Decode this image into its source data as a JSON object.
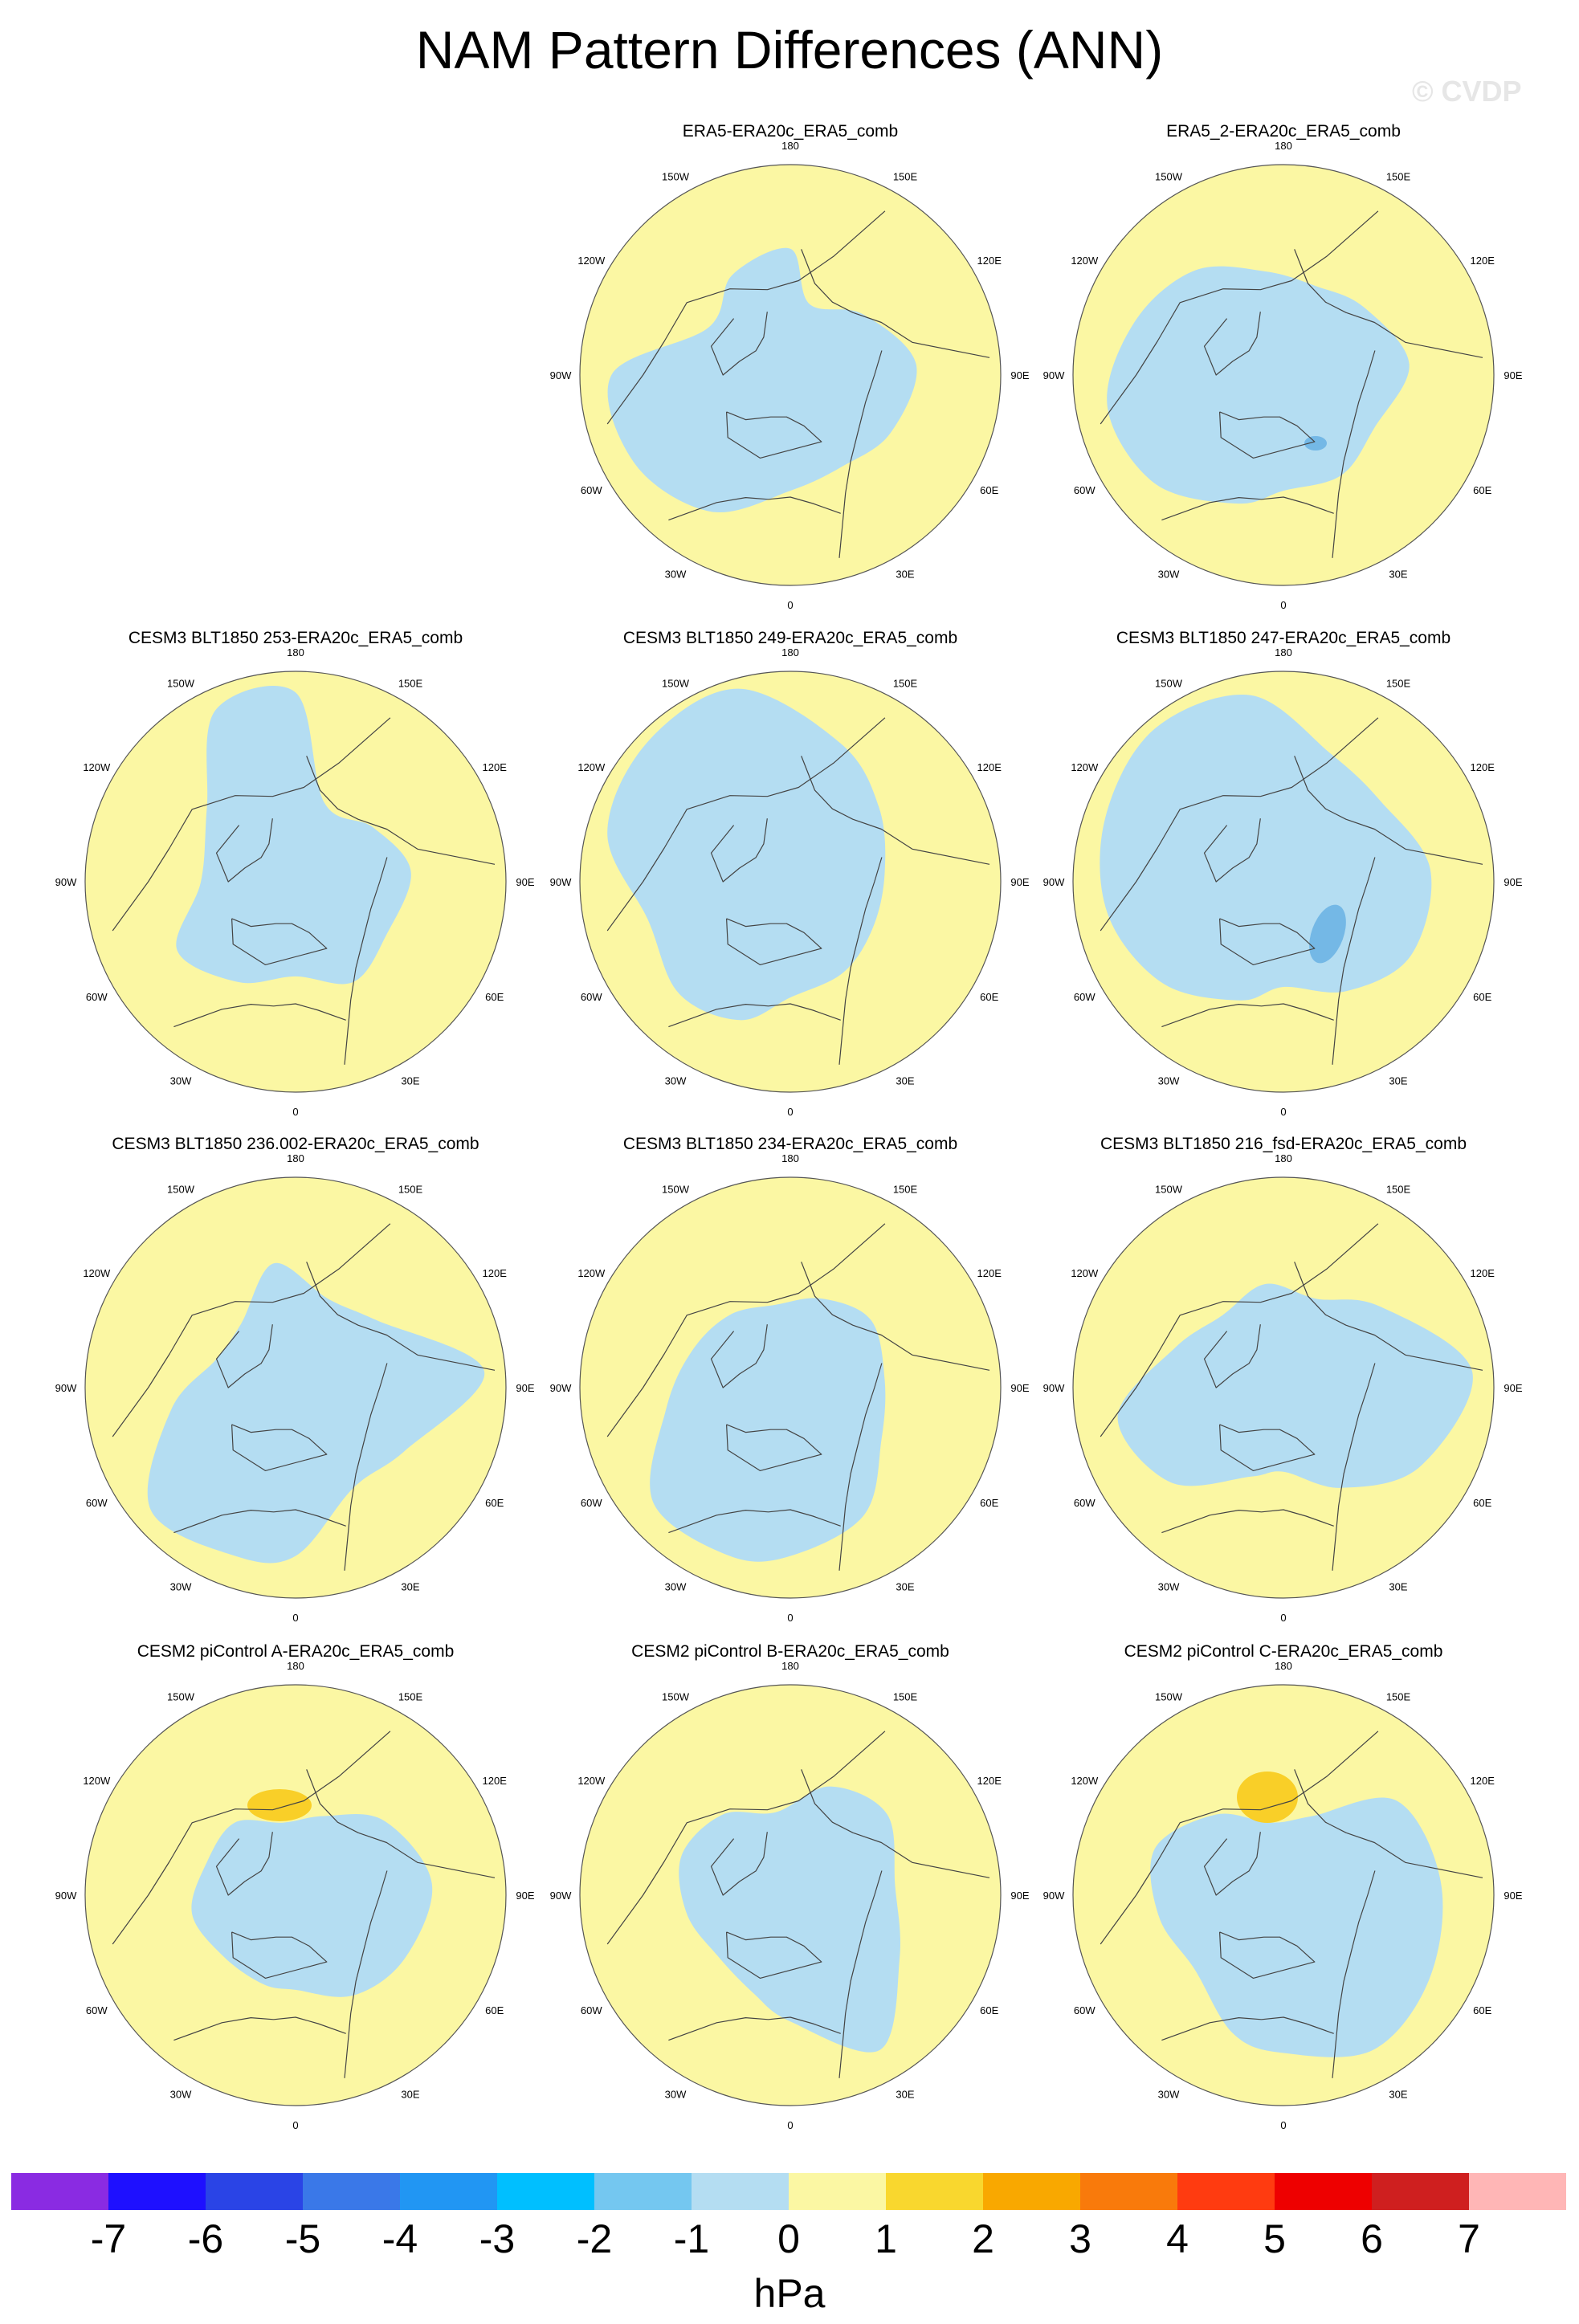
{
  "title": "NAM Pattern Differences (ANN)",
  "watermark": "© CVDP",
  "map_style": {
    "ocean_positive": "#fbf7a3",
    "negative": "#b4ddf2",
    "strong_negative": "#74b8e6",
    "strong_positive": "#f9cf28",
    "coast": "#444444"
  },
  "longitude_labels": [
    "180",
    "150E",
    "120E",
    "90E",
    "60E",
    "30E",
    "0",
    "30W",
    "60W",
    "90W",
    "120W",
    "150W"
  ],
  "panels": [
    {
      "title": "ERA5-ERA20c_ERA5_comb",
      "pattern": "pos_rim_neg_centre",
      "feature": null
    },
    {
      "title": "ERA5_2-ERA20c_ERA5_comb",
      "pattern": "pos_rim_neg_centre",
      "feature": "weak_neg"
    },
    {
      "title": "CESM3 BLT1850 253-ERA20c_ERA5_comb",
      "pattern": "pos_rim_neg_centre",
      "feature": null
    },
    {
      "title": "CESM3 BLT1850 249-ERA20c_ERA5_comb",
      "pattern": "pos_rim_neg_centre",
      "feature": null
    },
    {
      "title": "CESM3 BLT1850 247-ERA20c_ERA5_comb",
      "pattern": "pos_rim_neg_centre",
      "feature": "neg_scandinavia"
    },
    {
      "title": "CESM3 BLT1850 236.002-ERA20c_ERA5_comb",
      "pattern": "pos_rim_neg_centre",
      "feature": null
    },
    {
      "title": "CESM3 BLT1850 234-ERA20c_ERA5_comb",
      "pattern": "pos_rim_neg_centre",
      "feature": null
    },
    {
      "title": "CESM3 BLT1850 216_fsd-ERA20c_ERA5_comb",
      "pattern": "pos_rim_neg_centre",
      "feature": null
    },
    {
      "title": "CESM2 piControl A-ERA20c_ERA5_comb",
      "pattern": "pos_rim_neg_centre",
      "feature": "pos_siberia_small"
    },
    {
      "title": "CESM2 piControl B-ERA20c_ERA5_comb",
      "pattern": "pos_rim_neg_centre",
      "feature": null
    },
    {
      "title": "CESM2 piControl C-ERA20c_ERA5_comb",
      "pattern": "pos_rim_neg_centre",
      "feature": "pos_siberia_large"
    }
  ],
  "colorbar": {
    "colors": [
      "#8a2be2",
      "#1e10ff",
      "#2a44e6",
      "#3a78e8",
      "#2196f3",
      "#00bfff",
      "#74c7f0",
      "#b4ddf2",
      "#fbf7a3",
      "#f9d72e",
      "#f9a800",
      "#f97a0b",
      "#ff3b10",
      "#ee0000",
      "#cf1f1f",
      "#ffb6b6"
    ],
    "ticks": [
      "-7",
      "-6",
      "-5",
      "-4",
      "-3",
      "-2",
      "-1",
      "0",
      "1",
      "2",
      "3",
      "4",
      "5",
      "6",
      "7"
    ],
    "units": "hPa"
  }
}
